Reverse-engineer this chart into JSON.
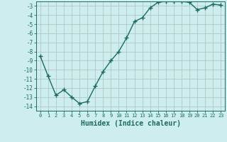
{
  "x": [
    0,
    1,
    2,
    3,
    4,
    5,
    6,
    7,
    8,
    9,
    10,
    11,
    12,
    13,
    14,
    15,
    16,
    17,
    18,
    19,
    20,
    21,
    22,
    23
  ],
  "y": [
    -8.5,
    -10.7,
    -12.8,
    -12.2,
    -13.0,
    -13.7,
    -13.5,
    -11.8,
    -10.2,
    -9.0,
    -8.0,
    -6.5,
    -4.7,
    -4.3,
    -3.2,
    -2.6,
    -2.5,
    -2.5,
    -2.5,
    -2.6,
    -3.4,
    -3.2,
    -2.8,
    -2.9
  ],
  "line_color": "#1a6b5e",
  "marker": "+",
  "markersize": 4,
  "linewidth": 1.0,
  "background_color": "#ceeeed",
  "grid_color": "#b0c8c8",
  "tick_color": "#1a6b5e",
  "xlabel": "Humidex (Indice chaleur)",
  "xlabel_fontsize": 7,
  "xlim": [
    -0.5,
    23.5
  ],
  "ylim": [
    -14.5,
    -2.5
  ],
  "yticks": [
    -3,
    -4,
    -5,
    -6,
    -7,
    -8,
    -9,
    -10,
    -11,
    -12,
    -13,
    -14
  ],
  "xticks": [
    0,
    1,
    2,
    3,
    4,
    5,
    6,
    7,
    8,
    9,
    10,
    11,
    12,
    13,
    14,
    15,
    16,
    17,
    18,
    19,
    20,
    21,
    22,
    23
  ]
}
